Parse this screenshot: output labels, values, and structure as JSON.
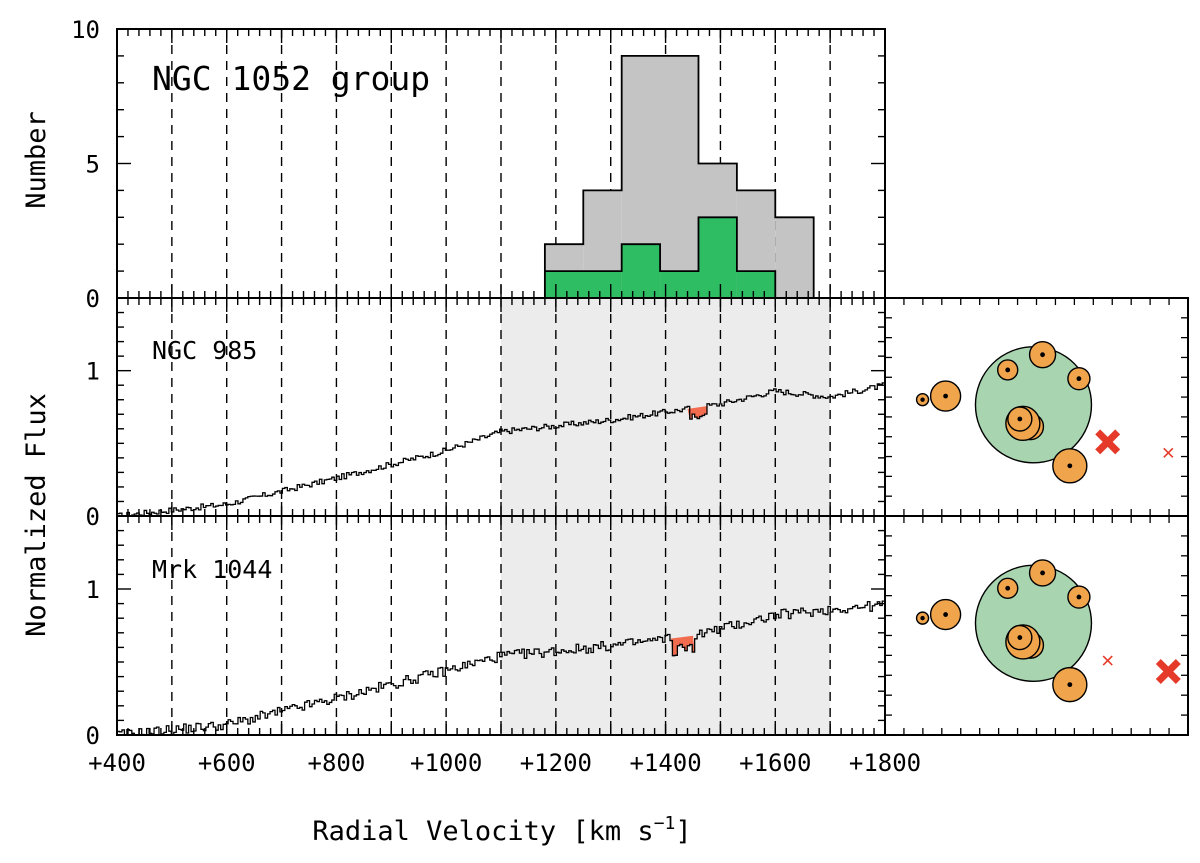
{
  "chart_data": [
    {
      "type": "histogram",
      "title": "NGC 1052 group",
      "ylabel": "Number",
      "xlim": [
        400,
        1800
      ],
      "ylim": [
        0,
        10
      ],
      "yticks": [
        0,
        5,
        10
      ],
      "grid_x": [
        500,
        600,
        700,
        800,
        900,
        1000,
        1100,
        1200,
        1300,
        1400,
        1500,
        1600,
        1700
      ],
      "series": [
        {
          "color": "#c4c4c4",
          "bins": [
            {
              "x0": 1180,
              "x1": 1250,
              "count": 2
            },
            {
              "x0": 1250,
              "x1": 1320,
              "count": 4
            },
            {
              "x0": 1320,
              "x1": 1460,
              "count": 9
            },
            {
              "x0": 1460,
              "x1": 1530,
              "count": 5
            },
            {
              "x0": 1530,
              "x1": 1600,
              "count": 4
            },
            {
              "x0": 1600,
              "x1": 1670,
              "count": 3
            }
          ]
        },
        {
          "color": "#2ebd63",
          "bins": [
            {
              "x0": 1180,
              "x1": 1320,
              "count": 1
            },
            {
              "x0": 1320,
              "x1": 1390,
              "count": 2
            },
            {
              "x0": 1390,
              "x1": 1460,
              "count": 1
            },
            {
              "x0": 1460,
              "x1": 1530,
              "count": 3
            },
            {
              "x0": 1530,
              "x1": 1600,
              "count": 1
            }
          ]
        }
      ]
    },
    {
      "type": "line",
      "title": "NGC 985",
      "xlim": [
        400,
        1800
      ],
      "ylim": [
        0,
        1.5
      ],
      "yticks": [
        "0",
        "1"
      ],
      "shaded_range": [
        1100,
        1700
      ],
      "shade_color": "#ececec",
      "absorption": {
        "x": [
          1440,
          1475
        ],
        "depth": 0.07,
        "color": "#f26d4f"
      },
      "continuum": [
        [
          400,
          0.0
        ],
        [
          600,
          0.08
        ],
        [
          800,
          0.26
        ],
        [
          1000,
          0.45
        ],
        [
          1100,
          0.58
        ],
        [
          1300,
          0.66
        ],
        [
          1500,
          0.77
        ],
        [
          1600,
          0.86
        ],
        [
          1700,
          0.82
        ],
        [
          1800,
          0.9
        ]
      ],
      "noise": 0.02
    },
    {
      "type": "line",
      "title": "Mrk 1044",
      "xlim": [
        400,
        1800
      ],
      "ylim": [
        0,
        1.5
      ],
      "yticks": [
        "0",
        "1"
      ],
      "shaded_range": [
        1100,
        1700
      ],
      "shade_color": "#ececec",
      "absorption": {
        "x": [
          1410,
          1450
        ],
        "depth": 0.1,
        "color": "#f26d4f"
      },
      "continuum": [
        [
          400,
          0.0
        ],
        [
          600,
          0.07
        ],
        [
          800,
          0.25
        ],
        [
          1000,
          0.44
        ],
        [
          1100,
          0.54
        ],
        [
          1300,
          0.61
        ],
        [
          1450,
          0.68
        ],
        [
          1600,
          0.82
        ],
        [
          1700,
          0.86
        ],
        [
          1800,
          0.89
        ]
      ],
      "noise": 0.035
    }
  ],
  "shared_axes": {
    "xlabel": "Radial Velocity [km s",
    "xlabel_sup": "−1",
    "xlabel_end": "]",
    "ylabel": "Normalized Flux",
    "xtick_labels": [
      "+400",
      "+600",
      "+800",
      "+1000",
      "+1200",
      "+1400",
      "+1600",
      "+1800"
    ]
  },
  "sky_maps": {
    "colors": {
      "halo": "#a8d4b0",
      "galaxy": "#f0a44c",
      "sightline": "#e53a2a"
    },
    "panels": [
      {
        "sightline": "NGC 985",
        "big_cross": [
          0.735,
          0.66
        ],
        "small_cross": [
          0.935,
          0.71
        ]
      },
      {
        "sightline": "Mrk 1044",
        "big_cross": [
          0.935,
          0.71
        ],
        "small_cross": [
          0.735,
          0.66
        ]
      }
    ]
  }
}
